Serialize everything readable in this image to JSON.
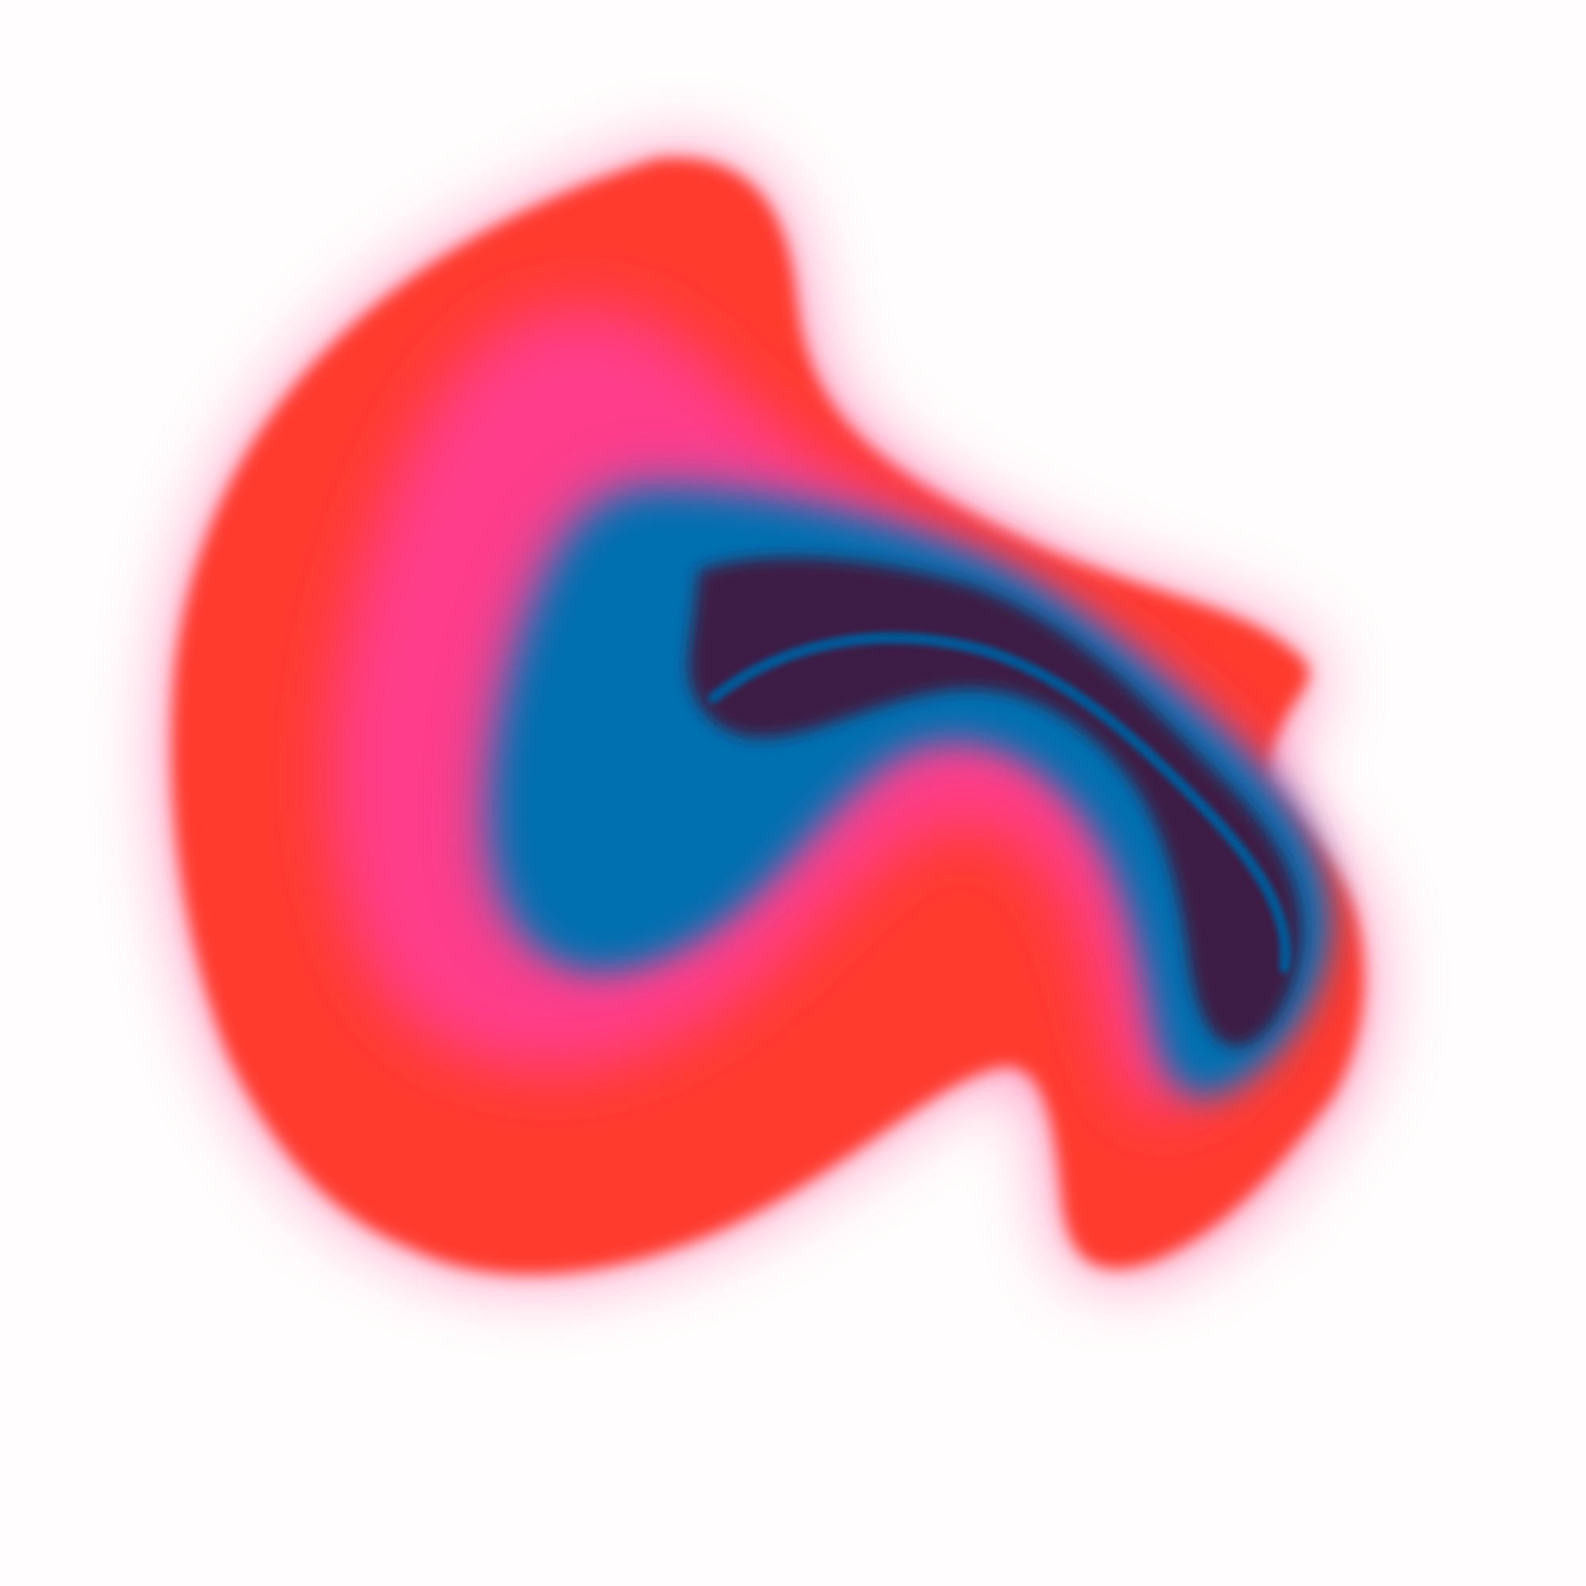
{
  "artwork": {
    "subject": "abstract-gradient-blob",
    "palette": {
      "background": "#fffdfd",
      "outer_red": "#ff3b2f",
      "pink": "#ff3d8b",
      "blue": "#0070b0",
      "deep_blue": "#005a9a",
      "dark_purple": "#3d1f45"
    }
  }
}
